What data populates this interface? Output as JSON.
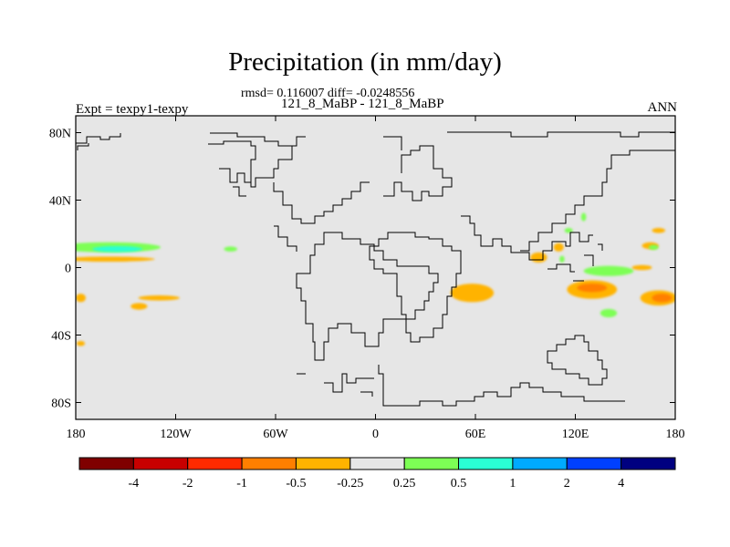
{
  "chart_data": {
    "type": "heatmap",
    "title": "Precipitation (in mm/day)",
    "subtitle": "rmsd= 0.116007 diff= -0.0248556",
    "case_label": "121_8_MaBP - 121_8_MaBP",
    "left_label": "Expt = texpy1-texpy",
    "right_label": "ANN",
    "x_ticks": [
      {
        "value": -180,
        "label": "180"
      },
      {
        "value": -120,
        "label": "120W"
      },
      {
        "value": -60,
        "label": "60W"
      },
      {
        "value": 0,
        "label": "0"
      },
      {
        "value": 60,
        "label": "60E"
      },
      {
        "value": 120,
        "label": "120E"
      },
      {
        "value": 180,
        "label": "180"
      }
    ],
    "y_ticks": [
      {
        "value": 80,
        "label": "80N"
      },
      {
        "value": 40,
        "label": "40N"
      },
      {
        "value": 0,
        "label": "0"
      },
      {
        "value": -40,
        "label": "40S"
      },
      {
        "value": -80,
        "label": "80S"
      }
    ],
    "xlim": [
      -180,
      180
    ],
    "ylim": [
      -90,
      90
    ],
    "colorbar": {
      "colors": [
        "#7f0000",
        "#c80000",
        "#ff2a00",
        "#ff7f00",
        "#ffb300",
        "#e6e6e6",
        "#7dff55",
        "#2affd4",
        "#00aaff",
        "#0040ff",
        "#000080"
      ],
      "labels": [
        "-4",
        "-2",
        "-1",
        "-0.5",
        "-0.25",
        "0.25",
        "0.5",
        "1",
        "2",
        "4"
      ]
    },
    "regions": [
      {
        "lon": -160,
        "lat": 12,
        "w": 62,
        "h": 6,
        "value": 0.4
      },
      {
        "lon": -155,
        "lat": 11,
        "w": 30,
        "h": 3.5,
        "value": 0.7
      },
      {
        "lon": -160,
        "lat": 5,
        "w": 55,
        "h": 3,
        "value": -0.3
      },
      {
        "lon": -87,
        "lat": 11,
        "w": 8,
        "h": 3,
        "value": 0.4
      },
      {
        "lon": -177,
        "lat": -18,
        "w": 6,
        "h": 5,
        "value": -0.3
      },
      {
        "lon": -130,
        "lat": -18,
        "w": 25,
        "h": 3,
        "value": -0.3
      },
      {
        "lon": -142,
        "lat": -23,
        "w": 10,
        "h": 4,
        "value": -0.3
      },
      {
        "lon": -177,
        "lat": -45,
        "w": 5,
        "h": 3,
        "value": -0.3
      },
      {
        "lon": 58,
        "lat": -15,
        "w": 26,
        "h": 11,
        "value": -0.35
      },
      {
        "lon": 130,
        "lat": -13,
        "w": 30,
        "h": 11,
        "value": -0.35
      },
      {
        "lon": 130,
        "lat": -12,
        "w": 18,
        "h": 5,
        "value": -0.7
      },
      {
        "lon": 170,
        "lat": -18,
        "w": 22,
        "h": 9,
        "value": -0.35
      },
      {
        "lon": 172,
        "lat": -18,
        "w": 12,
        "h": 5,
        "value": -0.7
      },
      {
        "lon": 140,
        "lat": -2,
        "w": 30,
        "h": 6,
        "value": 0.35
      },
      {
        "lon": 98,
        "lat": 6,
        "w": 10,
        "h": 6,
        "value": -0.3
      },
      {
        "lon": 110,
        "lat": 12,
        "w": 6,
        "h": 5,
        "value": -0.3
      },
      {
        "lon": 140,
        "lat": -27,
        "w": 10,
        "h": 5,
        "value": 0.35
      },
      {
        "lon": 165,
        "lat": 13,
        "w": 10,
        "h": 4,
        "value": -0.3
      },
      {
        "lon": 170,
        "lat": 22,
        "w": 8,
        "h": 3,
        "value": -0.3
      },
      {
        "lon": 160,
        "lat": 0,
        "w": 12,
        "h": 3,
        "value": -0.3
      },
      {
        "lon": 167,
        "lat": 12,
        "w": 6,
        "h": 3,
        "value": 0.3
      },
      {
        "lon": 125,
        "lat": 30,
        "w": 3,
        "h": 5,
        "value": 0.3
      },
      {
        "lon": 112,
        "lat": 5,
        "w": 3,
        "h": 4,
        "value": 0.3
      },
      {
        "lon": 116,
        "lat": 22,
        "w": 5,
        "h": 3,
        "value": 0.3
      }
    ]
  }
}
